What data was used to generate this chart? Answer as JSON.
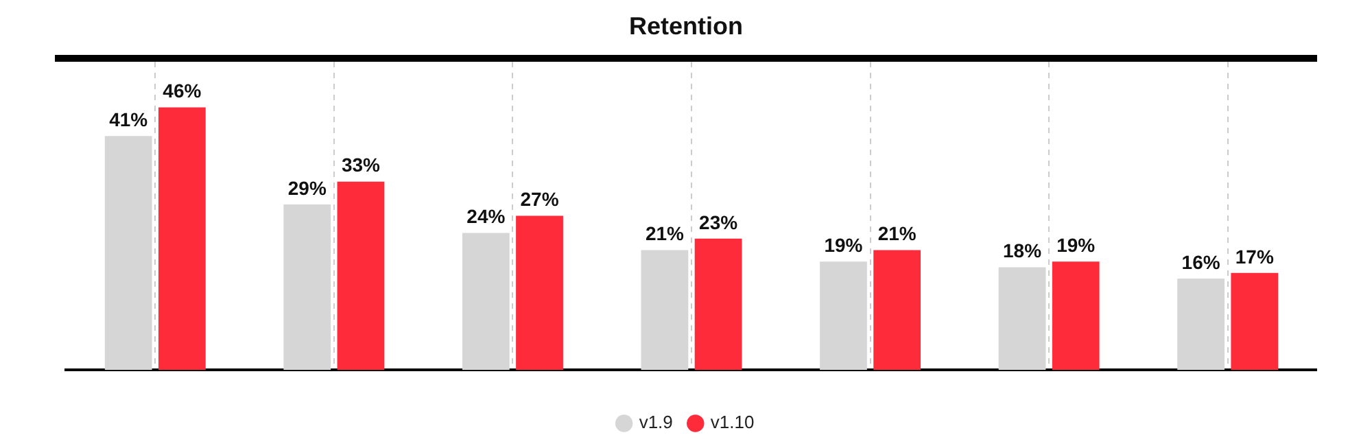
{
  "chart_data": {
    "type": "bar",
    "title": "Retention",
    "categories": [
      null,
      null,
      null,
      null,
      null,
      null,
      null
    ],
    "series": [
      {
        "name": "v1.9",
        "color": "#d6d6d6",
        "values": [
          41,
          29,
          24,
          21,
          19,
          18,
          16
        ],
        "value_labels": [
          "41%",
          "29%",
          "24%",
          "21%",
          "19%",
          "18%",
          "16%"
        ]
      },
      {
        "name": "v1.10",
        "color": "#fe2c3b",
        "values": [
          46,
          33,
          27,
          23,
          21,
          19,
          17
        ],
        "value_labels": [
          "46%",
          "33%",
          "27%",
          "23%",
          "21%",
          "19%",
          "17%"
        ]
      }
    ],
    "ylim": [
      0,
      54
    ],
    "grid": "x",
    "legend": "bottom"
  }
}
